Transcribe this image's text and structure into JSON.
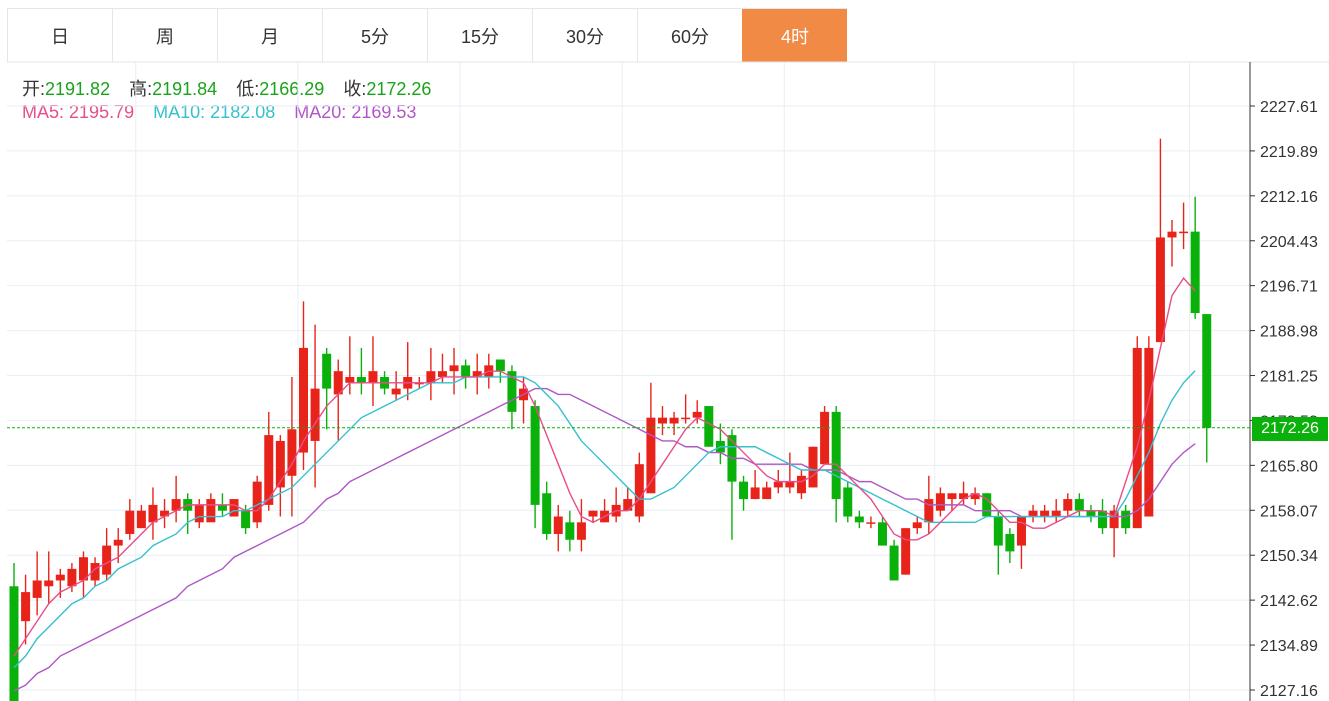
{
  "tabs": [
    {
      "label": "日",
      "active": false
    },
    {
      "label": "周",
      "active": false
    },
    {
      "label": "月",
      "active": false
    },
    {
      "label": "5分",
      "active": false
    },
    {
      "label": "15分",
      "active": false
    },
    {
      "label": "30分",
      "active": false
    },
    {
      "label": "60分",
      "active": false
    },
    {
      "label": "4时",
      "active": true
    }
  ],
  "ohlc_info": {
    "open_label": "开:",
    "open": "2191.82",
    "high_label": "高:",
    "high": "2191.84",
    "low_label": "低:",
    "low": "2166.29",
    "close_label": "收:",
    "close": "2172.26"
  },
  "ma_info": {
    "ma5_label": "MA5:",
    "ma5": "2195.79",
    "ma10_label": "MA10:",
    "ma10": "2182.08",
    "ma20_label": "MA20:",
    "ma20": "2169.53"
  },
  "current_price": "2172.26",
  "colors": {
    "up": "#e8241a",
    "down": "#0bb10b",
    "ma5": "#e84d8a",
    "ma10": "#35c0d0",
    "ma20": "#b057c6",
    "grid": "#e8eef3",
    "active_tab": "#f08a45"
  },
  "chart_data": {
    "type": "candlestick",
    "y_ticks": [
      "2227.61",
      "2219.89",
      "2212.16",
      "2204.43",
      "2196.71",
      "2188.98",
      "2181.25",
      "2173.53",
      "2165.80",
      "2158.07",
      "2150.34",
      "2142.62",
      "2134.89",
      "2127.16"
    ],
    "ylim": [
      2126.8,
      2228.8
    ],
    "grid": true,
    "candles": [
      [
        2145,
        2125,
        2149,
        2125
      ],
      [
        2139,
        2144,
        2147,
        2135
      ],
      [
        2143,
        2146,
        2151,
        2140
      ],
      [
        2145,
        2146,
        2151,
        2142
      ],
      [
        2146,
        2147,
        2148,
        2143
      ],
      [
        2145,
        2148,
        2149,
        2144
      ],
      [
        2146,
        2150,
        2151,
        2143
      ],
      [
        2146,
        2149,
        2150,
        2145
      ],
      [
        2147,
        2152,
        2155,
        2146
      ],
      [
        2152,
        2153,
        2155,
        2149
      ],
      [
        2154,
        2158,
        2160,
        2153
      ],
      [
        2155,
        2158,
        2159,
        2155
      ],
      [
        2156,
        2159,
        2162,
        2153
      ],
      [
        2157,
        2158,
        2160,
        2155
      ],
      [
        2158,
        2160,
        2164,
        2156
      ],
      [
        2160,
        2158,
        2161,
        2154
      ],
      [
        2156,
        2159,
        2160,
        2155
      ],
      [
        2156,
        2160,
        2161,
        2157
      ],
      [
        2159,
        2158,
        2161,
        2157
      ],
      [
        2157,
        2160,
        2160,
        2158
      ],
      [
        2158,
        2155,
        2159,
        2154
      ],
      [
        2156,
        2163,
        2164,
        2155
      ],
      [
        2159,
        2171,
        2175,
        2158
      ],
      [
        2162,
        2170,
        2171,
        2157
      ],
      [
        2164,
        2172,
        2181,
        2157
      ],
      [
        2168,
        2186,
        2194,
        2165
      ],
      [
        2170,
        2179,
        2190,
        2162
      ],
      [
        2185,
        2179,
        2186,
        2172
      ],
      [
        2178,
        2182,
        2184,
        2170
      ],
      [
        2180,
        2181,
        2188,
        2178
      ],
      [
        2181,
        2180,
        2186,
        2178
      ],
      [
        2180,
        2182,
        2188,
        2176
      ],
      [
        2181,
        2179,
        2182,
        2178
      ],
      [
        2178,
        2179,
        2182,
        2177
      ],
      [
        2179,
        2181,
        2187,
        2177
      ],
      [
        2180,
        2180,
        2181,
        2179
      ],
      [
        2180,
        2182,
        2186,
        2177
      ],
      [
        2181,
        2182,
        2185,
        2180
      ],
      [
        2182,
        2183,
        2186,
        2178
      ],
      [
        2183,
        2181,
        2184,
        2179
      ],
      [
        2181,
        2182,
        2185,
        2178
      ],
      [
        2181,
        2183,
        2185,
        2179
      ],
      [
        2184,
        2182,
        2184,
        2180
      ],
      [
        2182,
        2175,
        2183,
        2172
      ],
      [
        2177,
        2179,
        2181,
        2173
      ],
      [
        2176,
        2159,
        2177,
        2155
      ],
      [
        2161,
        2154,
        2163,
        2153
      ],
      [
        2154,
        2157,
        2159,
        2151
      ],
      [
        2156,
        2153,
        2158,
        2151
      ],
      [
        2153,
        2156,
        2160,
        2151
      ],
      [
        2157,
        2158,
        2158,
        2156
      ],
      [
        2156,
        2158,
        2160,
        2156
      ],
      [
        2157,
        2159,
        2162,
        2156
      ],
      [
        2158,
        2160,
        2162,
        2158
      ],
      [
        2157,
        2166,
        2168,
        2156
      ],
      [
        2161,
        2174,
        2180,
        2161
      ],
      [
        2173,
        2174,
        2176,
        2171
      ],
      [
        2173,
        2174,
        2175,
        2171
      ],
      [
        2174,
        2174,
        2178,
        2173
      ],
      [
        2174,
        2175,
        2177,
        2173
      ],
      [
        2176,
        2169,
        2176,
        2169
      ],
      [
        2170,
        2168,
        2173,
        2166
      ],
      [
        2171,
        2163,
        2172,
        2153
      ],
      [
        2163,
        2160,
        2164,
        2158
      ],
      [
        2160,
        2162,
        2165,
        2160
      ],
      [
        2160,
        2162,
        2163,
        2160
      ],
      [
        2162,
        2163,
        2165,
        2161
      ],
      [
        2162,
        2163,
        2168,
        2161
      ],
      [
        2161,
        2164,
        2165,
        2160
      ],
      [
        2162,
        2169,
        2169,
        2162
      ],
      [
        2166,
        2175,
        2176,
        2166
      ],
      [
        2175,
        2160,
        2176,
        2156
      ],
      [
        2162,
        2157,
        2163,
        2156
      ],
      [
        2157,
        2156,
        2158,
        2155
      ],
      [
        2156,
        2156,
        2157,
        2155
      ],
      [
        2156,
        2152,
        2157,
        2152
      ],
      [
        2152,
        2146,
        2153,
        2146
      ],
      [
        2147,
        2155,
        2155,
        2147
      ],
      [
        2155,
        2156,
        2157,
        2154
      ],
      [
        2156,
        2160,
        2164,
        2154
      ],
      [
        2158,
        2161,
        2162,
        2157
      ],
      [
        2160,
        2161,
        2161,
        2158
      ],
      [
        2160,
        2161,
        2163,
        2159
      ],
      [
        2160,
        2161,
        2162,
        2159
      ],
      [
        2161,
        2157,
        2161,
        2157
      ],
      [
        2157,
        2152,
        2158,
        2147
      ],
      [
        2154,
        2151,
        2155,
        2149
      ],
      [
        2152,
        2157,
        2157,
        2148
      ],
      [
        2157,
        2158,
        2159,
        2156
      ],
      [
        2157,
        2158,
        2159,
        2156
      ],
      [
        2157,
        2158,
        2160,
        2156
      ],
      [
        2158,
        2160,
        2161,
        2157
      ],
      [
        2160,
        2158,
        2161,
        2157
      ],
      [
        2158,
        2157,
        2159,
        2156
      ],
      [
        2158,
        2155,
        2160,
        2154
      ],
      [
        2155,
        2158,
        2159,
        2150
      ],
      [
        2158,
        2155,
        2159,
        2154
      ],
      [
        2155,
        2186,
        2188,
        2155
      ],
      [
        2157,
        2186,
        2188,
        2157
      ],
      [
        2187,
        2205,
        2222,
        2187
      ],
      [
        2205,
        2206,
        2208,
        2200
      ],
      [
        2206,
        2206,
        2211,
        2203
      ],
      [
        2206,
        2192,
        2212,
        2191
      ],
      [
        2191.82,
        2172.26,
        2191.84,
        2166.29
      ]
    ],
    "ma5": [
      2133,
      2136,
      2139,
      2142,
      2144,
      2145,
      2146,
      2148,
      2149,
      2150,
      2152,
      2154,
      2156,
      2157,
      2158,
      2159,
      2159,
      2159,
      2159,
      2159,
      2158,
      2158,
      2160,
      2163,
      2166,
      2170,
      2173,
      2176,
      2178,
      2180,
      2180,
      2180,
      2180,
      2180,
      2180,
      2180,
      2180,
      2181,
      2181,
      2181,
      2181,
      2182,
      2182,
      2181,
      2180,
      2176,
      2171,
      2166,
      2161,
      2157,
      2156,
      2157,
      2158,
      2158,
      2160,
      2163,
      2166,
      2169,
      2172,
      2174,
      2173,
      2172,
      2170,
      2168,
      2166,
      2164,
      2163,
      2163,
      2163,
      2164,
      2166,
      2166,
      2164,
      2162,
      2160,
      2157,
      2154,
      2153,
      2153,
      2154,
      2156,
      2158,
      2160,
      2161,
      2160,
      2158,
      2156,
      2156,
      2155,
      2155,
      2156,
      2157,
      2158,
      2158,
      2158,
      2157,
      2163,
      2169,
      2177,
      2186,
      2195,
      2198,
      2195.79
    ],
    "ma10": [
      2131,
      2133,
      2136,
      2138,
      2140,
      2142,
      2143,
      2145,
      2146,
      2148,
      2149,
      2150,
      2152,
      2153,
      2154,
      2156,
      2157,
      2157,
      2157,
      2158,
      2158,
      2159,
      2160,
      2161,
      2162,
      2164,
      2166,
      2168,
      2170,
      2172,
      2174,
      2175,
      2176,
      2177,
      2178,
      2179,
      2180,
      2180,
      2180,
      2181,
      2181,
      2181,
      2181,
      2181,
      2181,
      2180,
      2178,
      2176,
      2173,
      2170,
      2168,
      2166,
      2164,
      2162,
      2160,
      2160,
      2161,
      2162,
      2164,
      2166,
      2168,
      2169,
      2169,
      2169,
      2169,
      2168,
      2167,
      2166,
      2165,
      2165,
      2165,
      2164,
      2163,
      2162,
      2161,
      2160,
      2159,
      2158,
      2157,
      2156,
      2156,
      2156,
      2156,
      2156,
      2157,
      2157,
      2157,
      2157,
      2157,
      2157,
      2157,
      2157,
      2157,
      2157,
      2157,
      2157,
      2160,
      2164,
      2168,
      2173,
      2177,
      2180,
      2182.08
    ],
    "ma20": [
      2127,
      2128,
      2130,
      2131,
      2133,
      2134,
      2135,
      2136,
      2137,
      2138,
      2139,
      2140,
      2141,
      2142,
      2143,
      2145,
      2146,
      2147,
      2148,
      2150,
      2151,
      2152,
      2153,
      2154,
      2155,
      2156,
      2158,
      2160,
      2161,
      2163,
      2164,
      2165,
      2166,
      2167,
      2168,
      2169,
      2170,
      2171,
      2172,
      2173,
      2174,
      2175,
      2176,
      2177,
      2178,
      2179,
      2179,
      2178,
      2178,
      2177,
      2176,
      2175,
      2174,
      2173,
      2172,
      2171,
      2170,
      2170,
      2169,
      2169,
      2168,
      2168,
      2167,
      2167,
      2166,
      2166,
      2166,
      2166,
      2166,
      2165,
      2165,
      2165,
      2164,
      2163,
      2163,
      2162,
      2161,
      2160,
      2160,
      2159,
      2159,
      2159,
      2159,
      2158,
      2158,
      2158,
      2158,
      2157,
      2157,
      2157,
      2157,
      2157,
      2157,
      2157,
      2157,
      2157,
      2157,
      2158,
      2160,
      2163,
      2166,
      2168,
      2169.53
    ],
    "x_gridlines": [
      10,
      24,
      38,
      52,
      66,
      79,
      91,
      101
    ]
  }
}
